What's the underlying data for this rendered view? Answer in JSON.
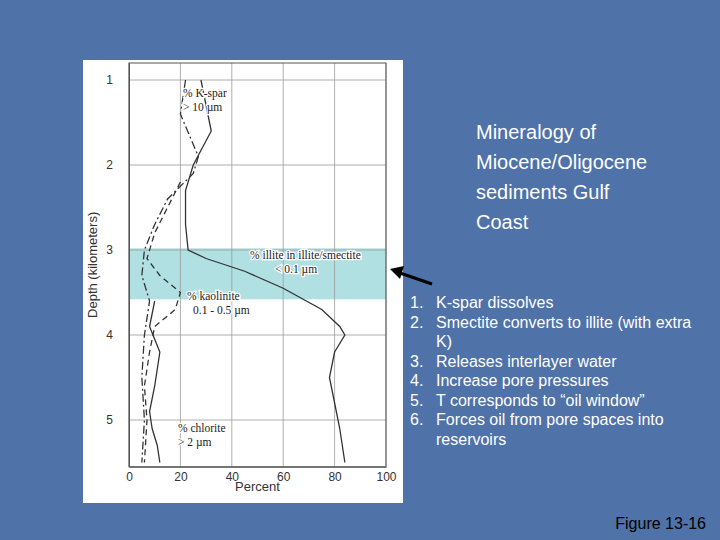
{
  "chart_data": {
    "type": "line",
    "title": "Mineralogy of Miocene/Oligocene sediments Gulf Coast",
    "x_label": "Percent",
    "y_label": "Depth (kilometers)",
    "xlim": [
      0,
      100
    ],
    "xticks": [
      0,
      20,
      40,
      60,
      80,
      100
    ],
    "ylim": [
      0.8,
      5.55
    ],
    "yticks": [
      1,
      2,
      3,
      4,
      5
    ],
    "grid": true,
    "highlight": {
      "depth": [
        2.98,
        3.58
      ],
      "color": "#a3dadd"
    },
    "series": [
      {
        "name": "% K-spar",
        "note": "> 10 µm",
        "color": "#333333",
        "line_style": "dashdot",
        "x": [
          22,
          20,
          27,
          25,
          15,
          10,
          6,
          5,
          8,
          6,
          5,
          6,
          5
        ],
        "values": [
          1.0,
          1.4,
          1.9,
          2.1,
          2.4,
          2.7,
          3.0,
          3.3,
          3.6,
          4.0,
          4.5,
          5.0,
          5.5
        ]
      },
      {
        "name": "% illite in illite/smectite",
        "note": "< 0.1 µm",
        "color": "#333333",
        "line_style": "solid",
        "x": [
          28,
          32,
          25,
          22,
          22,
          23,
          30,
          45,
          60,
          75,
          82,
          84,
          80,
          78,
          80,
          82,
          84
        ],
        "values": [
          1.0,
          1.6,
          2.0,
          2.3,
          2.7,
          3.0,
          3.1,
          3.25,
          3.45,
          3.7,
          3.9,
          4.0,
          4.2,
          4.5,
          4.8,
          5.1,
          5.5
        ]
      },
      {
        "name": "% kaolinite",
        "note": "0.1 - 0.5 µm",
        "color": "#333333",
        "line_style": "dashed",
        "x": [
          20,
          15,
          10,
          7,
          12,
          20,
          18,
          10,
          8,
          6,
          7,
          6
        ],
        "values": [
          2.2,
          2.5,
          2.8,
          3.1,
          3.3,
          3.5,
          3.7,
          3.9,
          4.2,
          4.6,
          5.0,
          5.5
        ]
      },
      {
        "name": "% chlorite",
        "note": "> 2 µm",
        "color": "#333333",
        "line_style": "solid",
        "x": [
          10,
          8,
          12,
          10,
          8,
          9,
          11,
          12
        ],
        "values": [
          3.6,
          3.9,
          4.2,
          4.6,
          4.9,
          5.1,
          5.3,
          5.5
        ]
      }
    ],
    "list": [
      {
        "label": "1.",
        "text": "K-spar dissolves"
      },
      {
        "label": "2.",
        "text": "Smectite converts to illite (with extra K)"
      },
      {
        "label": "3.",
        "text": "Releases interlayer water"
      },
      {
        "label": "4.",
        "text": "Increase pore pressures"
      },
      {
        "label": "5.",
        "text": "T corresponds to “oil window”"
      },
      {
        "label": "6.",
        "text": "Forces oil from pore spaces into reservoirs"
      }
    ],
    "caption": "Figure 13-16"
  }
}
